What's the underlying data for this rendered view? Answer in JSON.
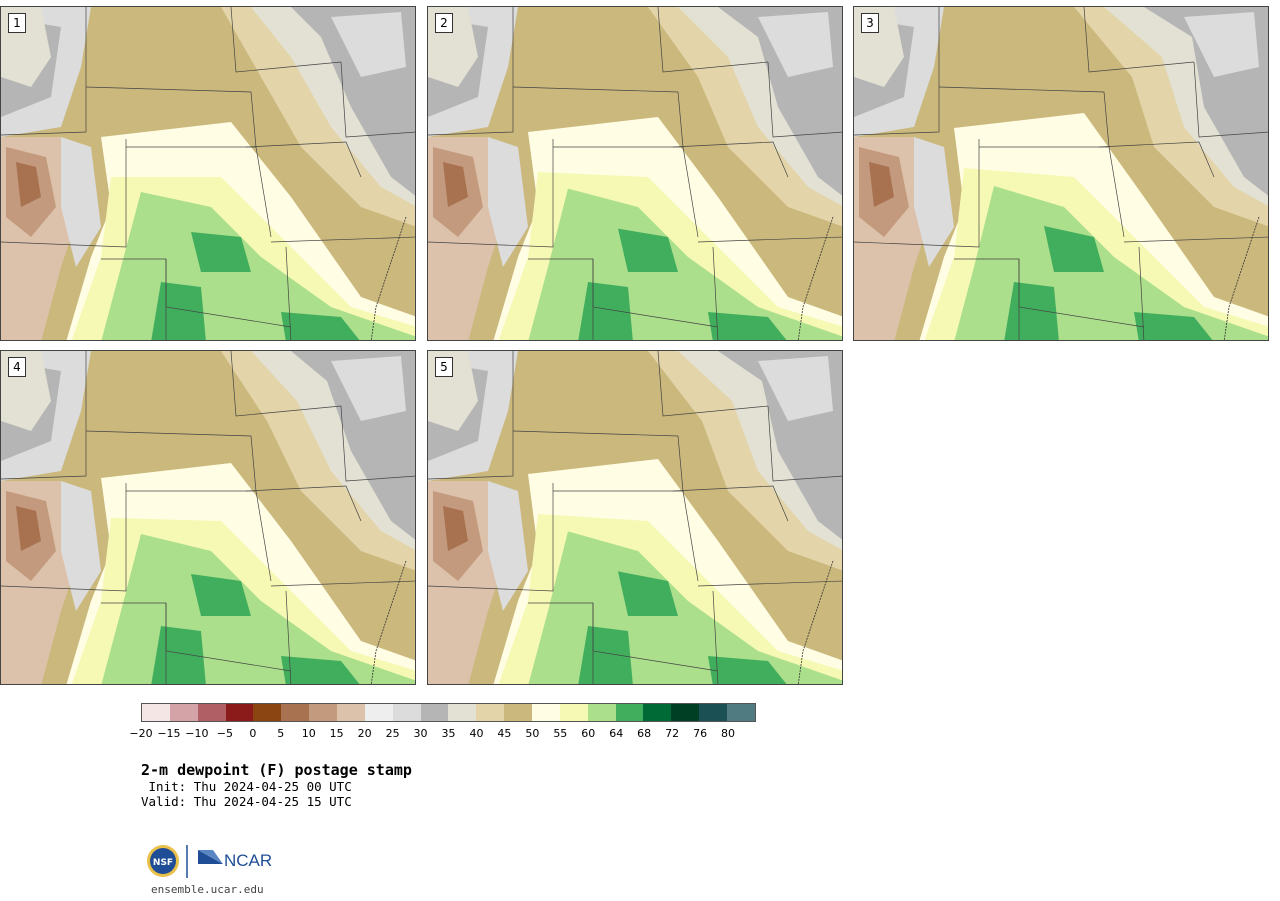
{
  "panels": [
    {
      "label": "1"
    },
    {
      "label": "2"
    },
    {
      "label": "3"
    },
    {
      "label": "4"
    },
    {
      "label": "5"
    }
  ],
  "colorbar": {
    "colors": [
      "#f5e6e6",
      "#d3a3a8",
      "#b05f64",
      "#8b1a1a",
      "#8b4513",
      "#a87150",
      "#c49a7e",
      "#dcc1ab",
      "#eeeeee",
      "#dcdcdc",
      "#b5b5b5",
      "#e2e1d3",
      "#e3d4a9",
      "#cbb87c",
      "#fffde4",
      "#f6f9b4",
      "#abdf8b",
      "#41ae5d",
      "#006a36",
      "#003f23",
      "#1b5055",
      "#507b81"
    ],
    "ticks": [
      "−20",
      "−15",
      "−10",
      "−5",
      "0",
      "5",
      "10",
      "15",
      "20",
      "25",
      "30",
      "35",
      "40",
      "45",
      "50",
      "55",
      "60",
      "64",
      "68",
      "72",
      "76",
      "80"
    ]
  },
  "title": "2-m dewpoint (F) postage stamp",
  "init": " Init: Thu 2024-04-25 00 UTC",
  "valid": "Valid: Thu 2024-04-25 15 UTC",
  "logo": {
    "nsf": "NSF",
    "ncar": "NCAR"
  },
  "site": "ensemble.ucar.edu"
}
